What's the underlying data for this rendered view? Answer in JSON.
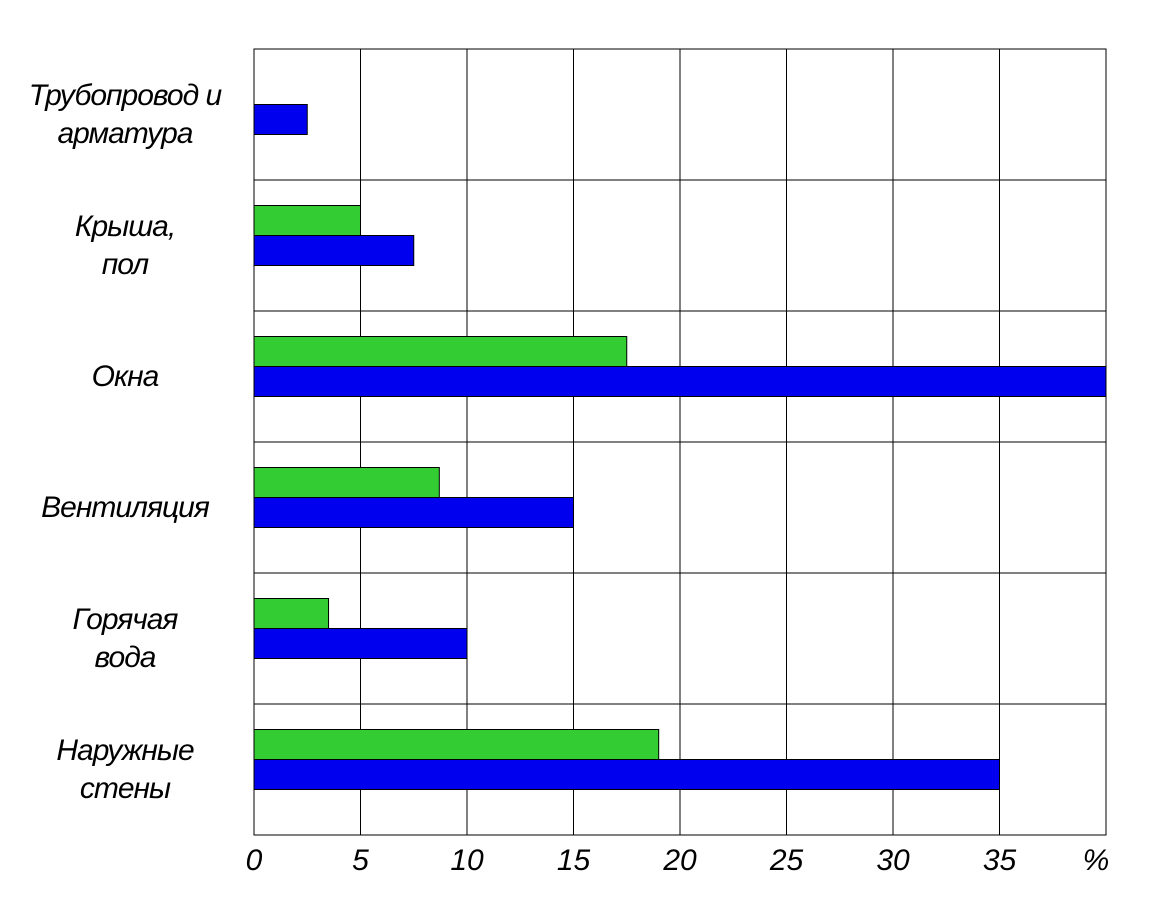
{
  "chart_data": {
    "type": "barh",
    "categories": [
      "Трубопровод и\nарматура",
      "Крыша,\nпол",
      "Окна",
      "Вентиляция",
      "Горячая\nвода",
      "Наружные\nстены"
    ],
    "series": [
      {
        "color": "#33cc33",
        "values": [
          null,
          5,
          17.5,
          8.7,
          3.5,
          19
        ]
      },
      {
        "color": "#0000ee",
        "values": [
          2.5,
          7.5,
          40,
          15,
          10,
          35
        ]
      }
    ],
    "xlim": [
      0,
      40
    ],
    "xticks": [
      0,
      5,
      10,
      15,
      20,
      25,
      30,
      35
    ],
    "x_unit": "%",
    "grid": true
  }
}
